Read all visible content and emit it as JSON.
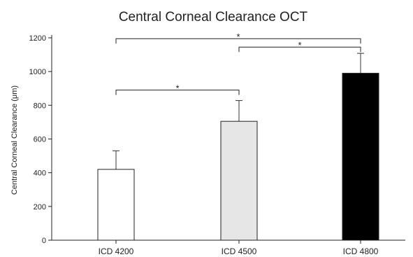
{
  "chart_data": {
    "type": "bar",
    "title": "Central Corneal Clearance OCT",
    "ylabel": "Central Corneal Clearance  (μm)",
    "xlabel": "",
    "categories": [
      "ICD 4200",
      "ICD 4500",
      "ICD 4800"
    ],
    "values": [
      420,
      705,
      990
    ],
    "error_upper": [
      530,
      828,
      1108
    ],
    "bar_colors": [
      "#ffffff",
      "#e6e6e6",
      "#000000"
    ],
    "ylim": [
      0,
      1200
    ],
    "yticks": [
      0,
      200,
      400,
      600,
      800,
      1000,
      1200
    ],
    "grid": false,
    "legend": "none",
    "significance": [
      {
        "from": 0,
        "to": 1,
        "y": 890,
        "label": "*"
      },
      {
        "from": 0,
        "to": 2,
        "y": 1195,
        "label": "*"
      },
      {
        "from": 1,
        "to": 2,
        "y": 1145,
        "label": "*"
      }
    ]
  }
}
